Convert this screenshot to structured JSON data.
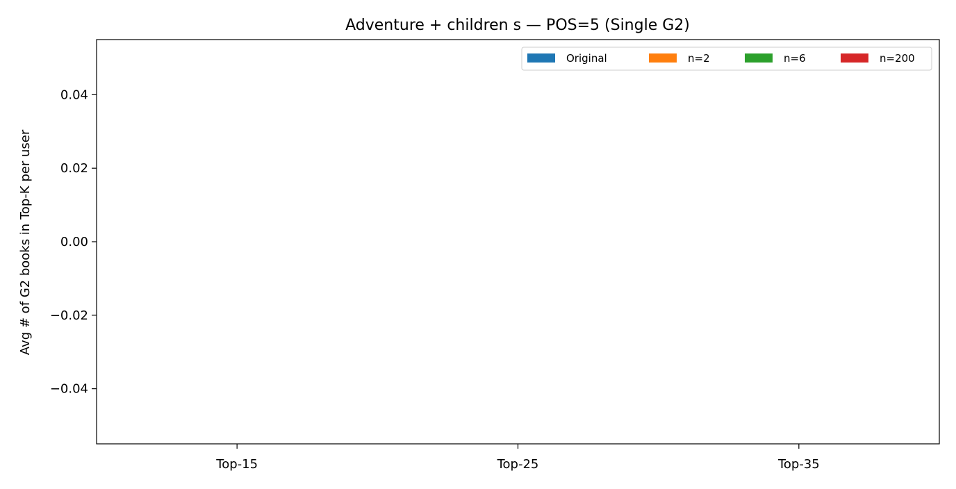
{
  "chart_data": {
    "type": "bar",
    "title": "Adventure + children s — POS=5 (Single G2)",
    "xlabel": "",
    "ylabel": "Avg # of G2 books in Top-K per user",
    "categories": [
      "Top-15",
      "Top-25",
      "Top-35"
    ],
    "series": [
      {
        "name": "Original",
        "color": "#1f77b4",
        "values": [
          0,
          0,
          0
        ]
      },
      {
        "name": "n=2",
        "color": "#ff7f0e",
        "values": [
          0,
          0,
          0
        ]
      },
      {
        "name": "n=6",
        "color": "#2ca02c",
        "values": [
          0,
          0,
          0
        ]
      },
      {
        "name": "n=200",
        "color": "#d62728",
        "values": [
          0,
          0,
          0
        ]
      }
    ],
    "ylim": [
      -0.055,
      0.055
    ],
    "yticks": [
      -0.04,
      -0.02,
      0.0,
      0.02,
      0.04
    ],
    "ytick_labels": [
      "−0.04",
      "−0.02",
      "0.00",
      "0.02",
      "0.04"
    ],
    "grid": false,
    "legend": {
      "placement": "top-right",
      "columns": 4
    }
  }
}
